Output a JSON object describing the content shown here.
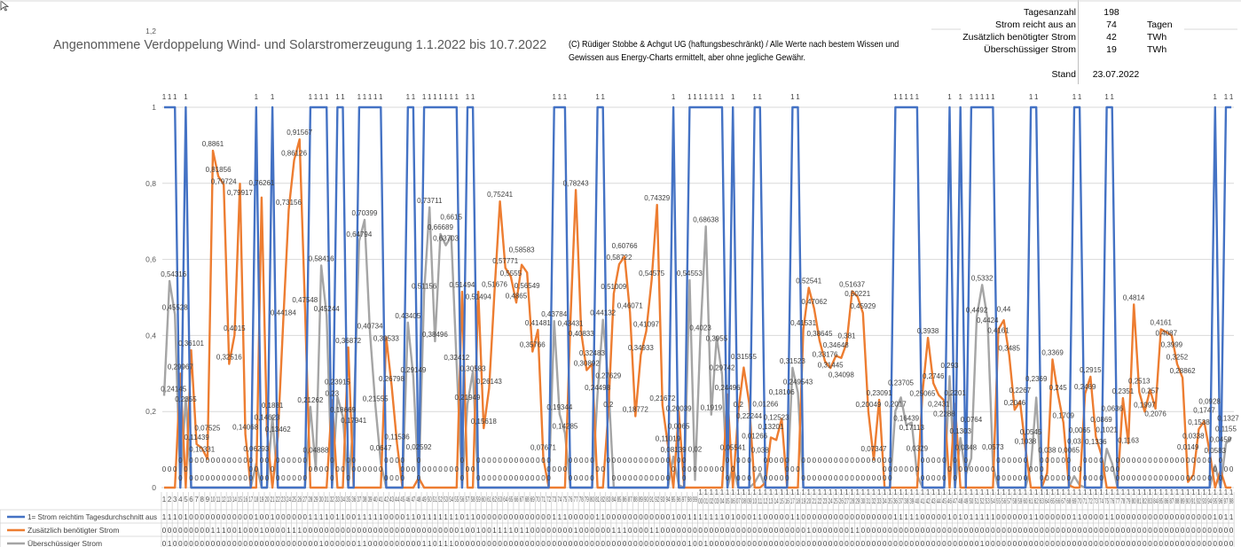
{
  "header": {
    "title": "Angenommene Verdoppelung Wind- und Solarstromerzeugung 1.1.2022 bis 10.7.2022",
    "copyright_line1": "(C) Rüdiger Stobbe & Achgut UG (haftungsbeschränkt) / Alle Werte nach bestem Wissen und",
    "copyright_line2": "Gewissen aus Energy-Charts ermittelt, aber ohne jegliche Gewähr."
  },
  "info": {
    "rows": [
      {
        "label": "Tagesanzahl",
        "value": "198",
        "unit": ""
      },
      {
        "label": "Strom reicht aus an",
        "value": "74",
        "unit": "Tagen"
      },
      {
        "label": "Zusätzlich benötigter Strom",
        "value": "42",
        "unit": "TWh"
      },
      {
        "label": "Überschüssiger Strom",
        "value": "19",
        "unit": "TWh"
      }
    ],
    "stand_label": "Stand",
    "stand_value": "23.07.2022"
  },
  "chart_data": {
    "type": "line",
    "title": "Angenommene Verdoppelung Wind- und Solarstromerzeugung 1.1.2022 bis 10.7.2022",
    "xlabel": "",
    "ylabel": "",
    "x_range": [
      1,
      198
    ],
    "ylim": [
      0,
      1.2
    ],
    "yticks": [
      "0",
      "0,2",
      "0,4",
      "0,6",
      "0,8",
      "1",
      "1,2"
    ],
    "ytick_values": [
      0,
      0.2,
      0.4,
      0.6,
      0.8,
      1,
      1.2
    ],
    "grid": true,
    "legend_placement": "data-table-left",
    "colors": {
      "blue": "#4472C4",
      "orange": "#ED7D31",
      "gray": "#A5A5A5"
    },
    "series": [
      {
        "name": "1= Strom reichtim Tagesdurchschnitt aus",
        "color": "#4472C4",
        "values": [
          1,
          1,
          1,
          0,
          1,
          0,
          0,
          0,
          0,
          0,
          0,
          0,
          0,
          0,
          0,
          0,
          0,
          1,
          0,
          0,
          1,
          0,
          0,
          0,
          0,
          0,
          0,
          1,
          1,
          1,
          1,
          0,
          1,
          1,
          0,
          0,
          1,
          1,
          1,
          1,
          1,
          0,
          0,
          0,
          0,
          1,
          1,
          0,
          1,
          1,
          1,
          1,
          1,
          1,
          1,
          0,
          1,
          1,
          0,
          0,
          0,
          0,
          0,
          0,
          0,
          0,
          0,
          0,
          0,
          0,
          0,
          0,
          1,
          1,
          1,
          0,
          0,
          0,
          0,
          0,
          1,
          1,
          0,
          0,
          0,
          0,
          0,
          0,
          0,
          0,
          0,
          0,
          0,
          0,
          1,
          0,
          0,
          1,
          1,
          1,
          1,
          1,
          1,
          1,
          0,
          1,
          0,
          0,
          0,
          1,
          1,
          0,
          0,
          0,
          0,
          0,
          1,
          1,
          0,
          0,
          0,
          0,
          0,
          0,
          0,
          0,
          0,
          0,
          0,
          0,
          0,
          0,
          0,
          0,
          0,
          1,
          1,
          1,
          1,
          1,
          0,
          0,
          0,
          0,
          0,
          1,
          0,
          1,
          0,
          1,
          1,
          1,
          1,
          1,
          0,
          0,
          0,
          0,
          0,
          0,
          1,
          1,
          0,
          0,
          0,
          0,
          0,
          0,
          1,
          1,
          0,
          0,
          0,
          0,
          1,
          1,
          0,
          0,
          0,
          0,
          0,
          0,
          0,
          0,
          0,
          0,
          0,
          0,
          0,
          0,
          0,
          0,
          0,
          0,
          1,
          0,
          1,
          1
        ]
      },
      {
        "name": "Zusätzlich benötigter Strom",
        "color": "#ED7D31",
        "values": [
          0,
          0,
          0,
          0.29967,
          0,
          0.36101,
          0.11439,
          0.10331,
          0.07525,
          0.8861,
          0.81856,
          0.79724,
          0.32516,
          0.4015,
          0.79917,
          0.14068,
          0,
          0,
          0.76261,
          0.14623,
          0,
          0.13462,
          0.44184,
          0.73156,
          0.86126,
          0.91567,
          0.47548,
          0,
          0,
          0,
          0,
          0.23,
          0,
          0,
          0.36872,
          0,
          0,
          0,
          0,
          0,
          0,
          0.39533,
          0.26798,
          0.11536,
          0,
          0,
          0,
          0.02592,
          0,
          0,
          0,
          0,
          0,
          0,
          0,
          0.51494,
          0,
          0,
          0.51494,
          0.15618,
          0.26143,
          0.51676,
          0.75241,
          0.57771,
          0.5555,
          0.4865,
          0.58583,
          0.56549,
          0.35766,
          0.41481,
          0.07671,
          0,
          0,
          0,
          0,
          0.43431,
          0.78243,
          0.40833,
          0.30892,
          0.32483,
          0,
          0,
          0.2,
          0.51009,
          0.58722,
          0.60766,
          0.46071,
          0.18772,
          0.34933,
          0.41097,
          0.54575,
          0.74329,
          0.21672,
          0.11019,
          0,
          0.20039,
          0,
          0,
          0,
          0,
          0,
          0,
          0,
          0,
          0.24496,
          0,
          0.2,
          0.31555,
          0.22244,
          0,
          0,
          0.01266,
          0.13201,
          0.12523,
          0.18106,
          0,
          0,
          0,
          0.41531,
          0.52541,
          0.47062,
          0.38645,
          0.33176,
          0.31445,
          0.34648,
          0.34098,
          0.381,
          0.51637,
          0.50221,
          0.45929,
          0.20049,
          0.07347,
          0.23091,
          0,
          0,
          0,
          0,
          0,
          0,
          0,
          0.25065,
          0.3938,
          0.2746,
          0.2431,
          0.2288,
          0,
          0.2201,
          0,
          0,
          0,
          0,
          0,
          0,
          0,
          0.4161,
          0.44,
          0.3485,
          0.2046,
          0.2267,
          0.1038,
          0,
          0,
          0,
          0.038,
          0.3369,
          0.245,
          0.1709,
          0.0065,
          0,
          0,
          0.2469,
          0.2915,
          0.1336,
          0.0869,
          0,
          0,
          0,
          0.2351,
          0.1163,
          0.4814,
          0.2513,
          0.1997,
          0.257,
          0.2076,
          0.4161,
          0.4087,
          0.3999,
          0.3252,
          0.28862,
          0.0149,
          0.0338,
          0.1538,
          0.1747,
          0.0928,
          0,
          0.0459,
          0,
          0
        ]
      },
      {
        "name": "Überschüssiger Strom",
        "color": "#A5A5A5",
        "values": [
          0.24145,
          0.54316,
          0.45528,
          0,
          0.2355,
          0,
          0,
          0,
          0,
          0,
          0,
          0,
          0,
          0,
          0,
          0,
          0,
          0.06293,
          0,
          0,
          0.1881,
          0,
          0,
          0,
          0,
          0,
          0,
          0.21262,
          0.04888,
          0.58416,
          0.45244,
          0,
          0.23915,
          0.18669,
          0,
          0.17941,
          0.64794,
          0.70399,
          0.40734,
          0.21555,
          0.0647,
          0,
          0,
          0,
          0,
          0.43405,
          0.29149,
          0,
          0.51156,
          0.73711,
          0.38496,
          0.66689,
          0.63703,
          0.6615,
          0.32412,
          0,
          0.21949,
          0.30583,
          0,
          0,
          0,
          0,
          0,
          0,
          0,
          0,
          0,
          0,
          0,
          0,
          0,
          0,
          0.43784,
          0.19344,
          0.14285,
          0,
          0,
          0,
          0,
          0,
          0.24498,
          0.44132,
          0.27629,
          0,
          0,
          0,
          0,
          0,
          0,
          0,
          0,
          0,
          0,
          0,
          0.08139,
          0.0065,
          0,
          0.54553,
          0.02,
          0.4023,
          0.68638,
          0.1919,
          0.3955,
          0.29742,
          0,
          0.05541,
          0,
          0,
          0,
          0.01266,
          0.038,
          0,
          0,
          0,
          0,
          0,
          0.31523,
          0.249543,
          0,
          0,
          0,
          0,
          0,
          0,
          0,
          0,
          0,
          0,
          0,
          0,
          0,
          0,
          0,
          0,
          0,
          0.2017,
          0.23705,
          0.16439,
          0.17113,
          0.0329,
          0,
          0,
          0,
          0,
          0,
          0.293,
          0,
          0.1303,
          0.0348,
          0.0764,
          0.4492,
          0.5332,
          0.4424,
          0.0573,
          0,
          0,
          0,
          0,
          0,
          0,
          0.0545,
          0.2369,
          0,
          0,
          0,
          0,
          0,
          0,
          0.03,
          0.0065,
          0,
          0,
          0,
          0,
          0.1021,
          0.0636,
          0,
          0,
          0,
          0,
          0,
          0,
          0,
          0,
          0,
          0,
          0,
          0,
          0,
          0,
          0,
          0,
          0,
          0,
          0.0583,
          0,
          0.1155,
          0.1327
        ]
      }
    ]
  }
}
